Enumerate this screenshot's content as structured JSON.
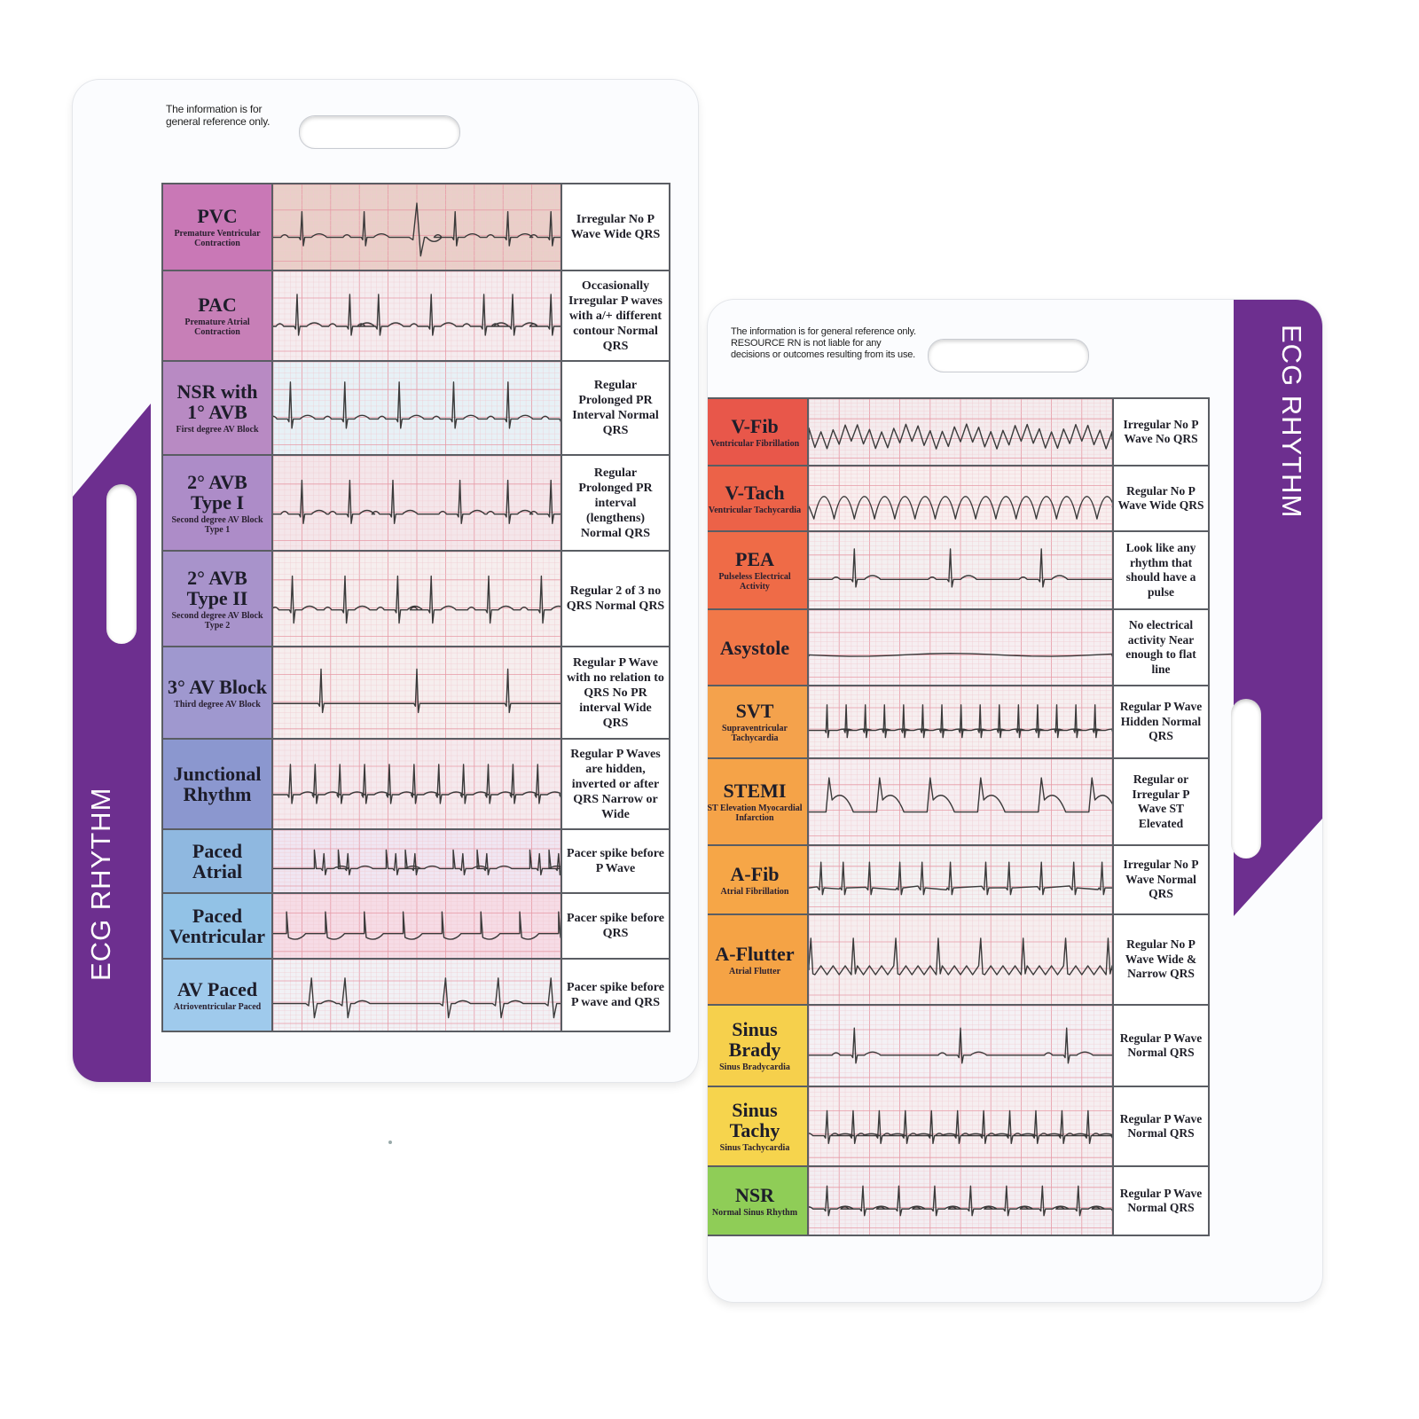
{
  "left_card": {
    "disclaimer": "The information is for general reference only.",
    "band_label": "ECG RHYTHM",
    "band_color": "#6d2f8f",
    "rows": [
      {
        "name": "PVC",
        "subtitle": "Premature Ventricular Contraction",
        "description": "Irregular No P Wave Wide QRS",
        "label_color": "#c978b6",
        "strip_color": "#e9cfc8",
        "pattern": "pvc"
      },
      {
        "name": "PAC",
        "subtitle": "Premature Atrial Contraction",
        "description": "Occasionally Irregular P waves with a/+ different contour Normal QRS",
        "label_color": "#c77fb7",
        "strip_color": "#f5ecef",
        "pattern": "pac"
      },
      {
        "name": "NSR with 1° AVB",
        "subtitle": "First degree AV Block",
        "description": "Regular Prolonged PR Interval Normal QRS",
        "label_color": "#b88ac3",
        "strip_color": "#e7f1f6",
        "pattern": "avb1"
      },
      {
        "name": "2° AVB Type I",
        "subtitle": "Second degree AV Block Type 1",
        "description": "Regular Prolonged PR interval (lengthens) Normal QRS",
        "label_color": "#ad8cc8",
        "strip_color": "#f4e6ea",
        "pattern": "avb2i"
      },
      {
        "name": "2° AVB Type II",
        "subtitle": "Second degree AV Block Type 2",
        "description": "Regular 2 of 3 no QRS Normal QRS",
        "label_color": "#a893cb",
        "strip_color": "#f6eeee",
        "pattern": "avb2ii"
      },
      {
        "name": "3° AV Block",
        "subtitle": "Third degree AV Block",
        "description": "Regular P Wave with no relation to QRS No PR interval Wide QRS",
        "label_color": "#9f98cf",
        "strip_color": "#f6eeee",
        "pattern": "avb3"
      },
      {
        "name": "Junctional Rhythm",
        "subtitle": "",
        "description": "Regular P Waves are hidden, inverted or after QRS Narrow or Wide",
        "label_color": "#8b97cf",
        "strip_color": "#f5eaee",
        "pattern": "junctional"
      },
      {
        "name": "Paced Atrial",
        "subtitle": "",
        "description": "Pacer spike before P Wave",
        "label_color": "#8fb8e0",
        "strip_color": "#f0e6f2",
        "pattern": "paced_atrial"
      },
      {
        "name": "Paced Ventricular",
        "subtitle": "",
        "description": "Pacer spike before QRS",
        "label_color": "#92c2e6",
        "strip_color": "#f6dce6",
        "pattern": "paced_vent"
      },
      {
        "name": "AV Paced",
        "subtitle": "Atrioventricular Paced",
        "description": "Pacer spike before P wave and QRS",
        "label_color": "#9fcaec",
        "strip_color": "#f1f1f5",
        "pattern": "av_paced"
      }
    ]
  },
  "right_card": {
    "disclaimer": "The information is for general reference only. RESOURCE RN is not liable for any decisions or outcomes resulting from its use.",
    "band_label": "ECG RHYTHM",
    "band_color": "#6d2f8f",
    "rows": [
      {
        "name": "V-Fib",
        "subtitle": "Ventricular Fibrillation",
        "description": "Irregular No P Wave No QRS",
        "label_color": "#e8574a",
        "strip_color": "#f4ecee",
        "pattern": "vfib"
      },
      {
        "name": "V-Tach",
        "subtitle": "Ventricular Tachycardia",
        "description": "Regular No P Wave Wide QRS",
        "label_color": "#ec6248",
        "strip_color": "#f8efef",
        "pattern": "vtach"
      },
      {
        "name": "PEA",
        "subtitle": "Pulseless Electrical Activity",
        "description": "Look like any rhythm that should have a pulse",
        "label_color": "#ef6b47",
        "strip_color": "#f4f0f1",
        "pattern": "pea"
      },
      {
        "name": "Asystole",
        "subtitle": "",
        "description": "No electrical activity Near enough to flat line",
        "label_color": "#f17848",
        "strip_color": "#f6eef1",
        "pattern": "asystole"
      },
      {
        "name": "SVT",
        "subtitle": "Supraventricular Tachycardia",
        "description": "Regular P Wave Hidden Normal QRS",
        "label_color": "#f4a24c",
        "strip_color": "#f6eff0",
        "pattern": "svt"
      },
      {
        "name": "STEMI",
        "subtitle": "ST Elevation Myocardial Infarction",
        "description": "Regular or Irregular P Wave ST Elevated",
        "label_color": "#f5a348",
        "strip_color": "#f6eef1",
        "pattern": "stemi"
      },
      {
        "name": "A-Fib",
        "subtitle": "Atrial Fibrillation",
        "description": "Irregular No P Wave Normal QRS",
        "label_color": "#f6a647",
        "strip_color": "#f3f2f3",
        "pattern": "afib"
      },
      {
        "name": "A-Flutter",
        "subtitle": "Atrial Flutter",
        "description": "Regular No P Wave Wide & Narrow QRS",
        "label_color": "#f5a345",
        "strip_color": "#f6eeef",
        "pattern": "aflutter"
      },
      {
        "name": "Sinus Brady",
        "subtitle": "Sinus Bradycardia",
        "description": "Regular P Wave Normal QRS",
        "label_color": "#f6d04c",
        "strip_color": "#f4f1f5",
        "pattern": "brady"
      },
      {
        "name": "Sinus Tachy",
        "subtitle": "Sinus Tachycardia",
        "description": "Regular P Wave Normal QRS",
        "label_color": "#f6d44d",
        "strip_color": "#f6eef0",
        "pattern": "tachy"
      },
      {
        "name": "NSR",
        "subtitle": "Normal Sinus Rhythm",
        "description": "Regular P Wave Normal QRS",
        "label_color": "#8fcd57",
        "strip_color": "#f3eef2",
        "pattern": "nsr"
      }
    ]
  }
}
